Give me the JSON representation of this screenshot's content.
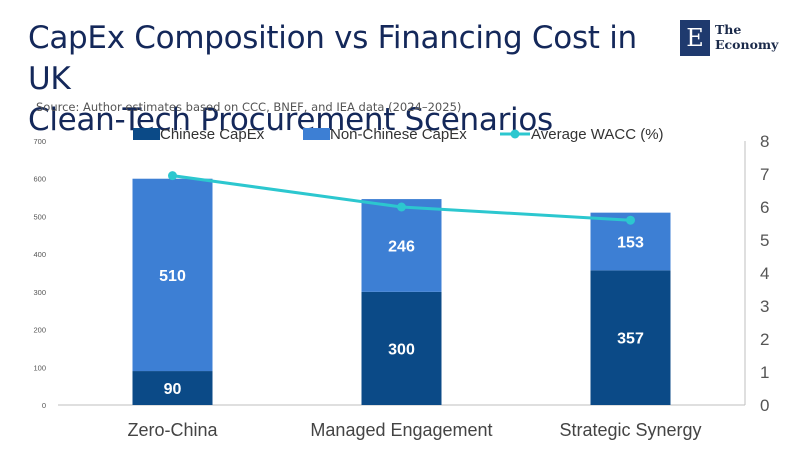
{
  "header": {
    "title_line1": "CapEx Composition vs Financing Cost in UK",
    "title_line2": "Clean-Tech Procurement Scenarios",
    "source": "Source:  Author estimates based on CCC, BNEF, and IEA data (2024–2025)"
  },
  "logo": {
    "mark": "E",
    "line1": "The",
    "line2": "Economy"
  },
  "colors": {
    "chinese": "#0b4a87",
    "non_chinese": "#3d7fd4",
    "wacc": "#2cc7cf",
    "axis": "#bfbfbf",
    "title": "#14285a"
  },
  "chart_data": {
    "type": "bar",
    "stacked": true,
    "categories": [
      "Zero-China",
      "Managed Engagement",
      "Strategic Synergy"
    ],
    "series": [
      {
        "name": "Chinese CapEx",
        "values": [
          90,
          300,
          357
        ],
        "axis": "left",
        "color": "#0b4a87"
      },
      {
        "name": "Non-Chinese CapEx",
        "values": [
          510,
          246,
          153
        ],
        "axis": "left",
        "color": "#3d7fd4"
      },
      {
        "name": "Average WACC (%)",
        "type": "line",
        "values": [
          6.95,
          6.0,
          5.6
        ],
        "axis": "right",
        "color": "#2cc7cf"
      }
    ],
    "ylim_left": [
      0,
      700
    ],
    "yticks_left": [
      0,
      100,
      200,
      300,
      400,
      500,
      600,
      700
    ],
    "ylim_right": [
      0,
      8
    ],
    "yticks_right": [
      0,
      1,
      2,
      3,
      4,
      5,
      6,
      7,
      8
    ],
    "legend_position": "top",
    "grid": false
  }
}
